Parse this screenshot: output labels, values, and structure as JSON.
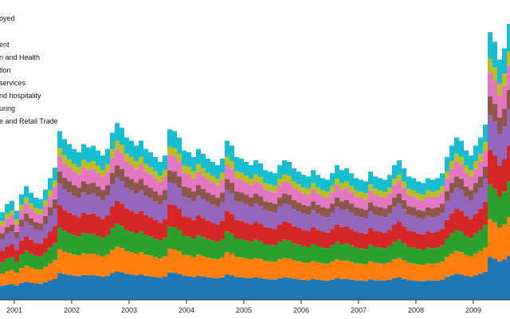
{
  "chart_data": {
    "type": "area",
    "stacked": true,
    "interpolation": "step",
    "title": "",
    "xlabel": "",
    "ylabel": "",
    "x_start": 2000.917,
    "x_step_months": 1,
    "x_ticks": [
      "2001",
      "2002",
      "2003",
      "2004",
      "2005",
      "2006",
      "2007",
      "2008",
      "2009"
    ],
    "legend_placement": "top-left",
    "legend": [
      {
        "label": "oyed",
        "color": "#17becf"
      },
      {
        "label": "ent",
        "color": "#e377c2"
      },
      {
        "label": "n and Health",
        "color": "#8c564b"
      },
      {
        "label": "tion",
        "color": "#c5b0d5"
      },
      {
        "label": "services",
        "color": "#9467bd"
      },
      {
        "label": "nd hospitality",
        "color": "#d62728"
      },
      {
        "label": "uring",
        "color": "#2ca02c"
      },
      {
        "label": "e and Retail Trade",
        "color": "#ff7f0e"
      }
    ],
    "ylim": [
      0,
      340
    ],
    "total": [
      108,
      118,
      122,
      110,
      130,
      140,
      132,
      126,
      124,
      136,
      150,
      163,
      208,
      198,
      192,
      186,
      182,
      192,
      188,
      190,
      184,
      178,
      186,
      206,
      218,
      212,
      200,
      196,
      190,
      196,
      186,
      182,
      176,
      170,
      178,
      210,
      208,
      200,
      184,
      182,
      176,
      186,
      180,
      174,
      170,
      166,
      174,
      196,
      190,
      176,
      174,
      170,
      166,
      172,
      168,
      160,
      158,
      156,
      166,
      172,
      170,
      162,
      158,
      154,
      152,
      160,
      154,
      150,
      148,
      156,
      166,
      160,
      162,
      156,
      150,
      148,
      146,
      158,
      152,
      150,
      148,
      154,
      166,
      172,
      162,
      152,
      150,
      146,
      144,
      150,
      148,
      150,
      156,
      176,
      190,
      200,
      196,
      184,
      178,
      190,
      200,
      216,
      330,
      318,
      296,
      310,
      340,
      320
    ],
    "series": [
      {
        "name": "Wholesale and Retail Trade base",
        "color": "#1f77b4",
        "share": 0.16
      },
      {
        "name": "Wholesale and Retail Trade",
        "color": "#ff7f0e",
        "share": 0.14
      },
      {
        "name": "Manufacturing",
        "color": "#2ca02c",
        "share": 0.13
      },
      {
        "name": "Leisure and hospitality",
        "color": "#d62728",
        "share": 0.13
      },
      {
        "name": "Business services",
        "color": "#9467bd",
        "share": 0.13
      },
      {
        "name": "Construction",
        "color": "#8c564b",
        "share": 0.07
      },
      {
        "name": "Education and Health",
        "color": "#e377c2",
        "share": 0.09
      },
      {
        "name": "Government",
        "color": "#bcbd22",
        "share": 0.05
      },
      {
        "name": "Self-employed",
        "color": "#17becf",
        "share": 0.1
      }
    ]
  }
}
